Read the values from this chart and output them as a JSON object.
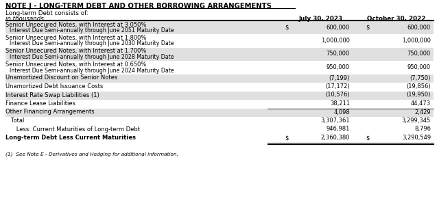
{
  "title": "NOTE J - LONG-TERM DEBT AND OTHER BORROWING ARRANGEMENTS",
  "subtitle": "Long-term Debt consists of:",
  "col_header_label": "in thousands",
  "col1_header": "July 30, 2023",
  "col2_header": "October 30, 2022",
  "footnote": "(1)  See Note E - Derivatives and Hedging for additional information.",
  "rows": [
    {
      "label": "Senior Unsecured Notes, with Interest at 3.050%\n    Interest Due Semi-annually through June 2051 Maturity Date",
      "val1": "600,000",
      "val2": "600,000",
      "dollar1": true,
      "dollar2": true,
      "shaded": true,
      "bold": false,
      "top_line": false,
      "double_underline": false
    },
    {
      "label": "Senior Unsecured Notes, with Interest at 1.800%\n    Interest Due Semi-annually through June 2030 Maturity Date",
      "val1": "1,000,000",
      "val2": "1,000,000",
      "dollar1": false,
      "dollar2": false,
      "shaded": false,
      "bold": false,
      "top_line": false,
      "double_underline": false
    },
    {
      "label": "Senior Unsecured Notes, with Interest at 1.700%\n    Interest Due Semi-annually through June 2028 Maturity Date",
      "val1": "750,000",
      "val2": "750,000",
      "dollar1": false,
      "dollar2": false,
      "shaded": true,
      "bold": false,
      "top_line": false,
      "double_underline": false
    },
    {
      "label": "Senior Unsecured Notes, with Interest at 0.650%\n    Interest Due Semi-annually through June 2024 Maturity Date",
      "val1": "950,000",
      "val2": "950,000",
      "dollar1": false,
      "dollar2": false,
      "shaded": false,
      "bold": false,
      "top_line": false,
      "double_underline": false
    },
    {
      "label": "Unamortized Discount on Senior Notes",
      "val1": "(7,199)",
      "val2": "(7,750)",
      "dollar1": false,
      "dollar2": false,
      "shaded": true,
      "bold": false,
      "top_line": false,
      "double_underline": false
    },
    {
      "label": "Unamortized Debt Issuance Costs",
      "val1": "(17,172)",
      "val2": "(19,856)",
      "dollar1": false,
      "dollar2": false,
      "shaded": false,
      "bold": false,
      "top_line": false,
      "double_underline": false
    },
    {
      "label": "Interest Rate Swap Liabilities (1)",
      "val1": "(10,576)",
      "val2": "(19,950)",
      "dollar1": false,
      "dollar2": false,
      "shaded": true,
      "bold": false,
      "top_line": false,
      "double_underline": false
    },
    {
      "label": "Finance Lease Liabilities",
      "val1": "38,211",
      "val2": "44,473",
      "dollar1": false,
      "dollar2": false,
      "shaded": false,
      "bold": false,
      "top_line": false,
      "double_underline": false
    },
    {
      "label": "Other Financing Arrangements",
      "val1": "4,098",
      "val2": "2,429",
      "dollar1": false,
      "dollar2": false,
      "shaded": true,
      "bold": false,
      "top_line": true,
      "double_underline": false
    },
    {
      "label": "   Total",
      "val1": "3,307,361",
      "val2": "3,299,345",
      "dollar1": false,
      "dollar2": false,
      "shaded": false,
      "bold": false,
      "top_line": false,
      "double_underline": false
    },
    {
      "label": "      Less: Current Maturities of Long-term Debt",
      "val1": "946,981",
      "val2": "8,796",
      "dollar1": false,
      "dollar2": false,
      "shaded": false,
      "bold": false,
      "top_line": false,
      "double_underline": false
    },
    {
      "label": "Long-term Debt Less Current Maturities",
      "val1": "2,360,380",
      "val2": "3,290,549",
      "dollar1": true,
      "dollar2": true,
      "shaded": false,
      "bold": true,
      "top_line": false,
      "double_underline": true
    }
  ],
  "bg_color": "#ffffff",
  "shaded_color": "#e0e0e0",
  "text_color": "#000000",
  "title_color": "#000000"
}
